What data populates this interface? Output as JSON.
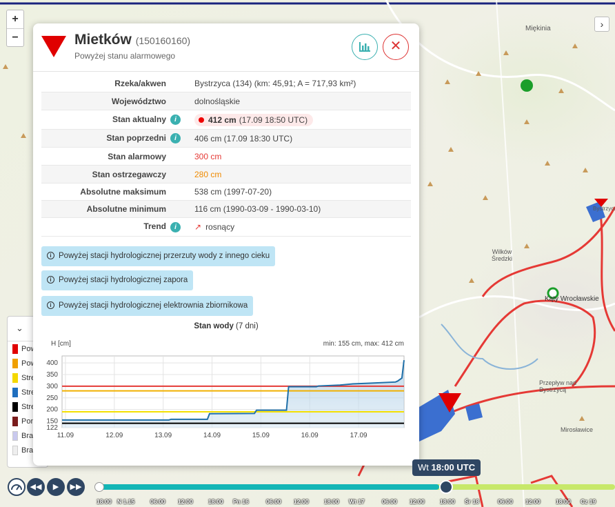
{
  "map": {
    "labels": [
      "Miękinia",
      "Wilków Średzki",
      "Kąty Wrocławskie",
      "Przepływ nad Bystrzycą",
      "Mirosławice",
      "Bystrzyca"
    ],
    "zoom_in": "+",
    "zoom_out": "−",
    "collapse": "›"
  },
  "legend": {
    "toggle": "⌄",
    "items": [
      {
        "label": "Pow",
        "color": "#e00000"
      },
      {
        "label": "Pow",
        "color": "#f0a000"
      },
      {
        "label": "Stre",
        "color": "#f4d800"
      },
      {
        "label": "Stre",
        "color": "#1f6fbf"
      },
      {
        "label": "Stre",
        "color": "#000000"
      },
      {
        "label": "Poni",
        "color": "#7a1c1c"
      },
      {
        "label": "Bra",
        "color": "#c9c9ee"
      },
      {
        "label": "Bra",
        "color": "#eeeeee"
      }
    ]
  },
  "station": {
    "name": "Mietków",
    "code": "(150160160)",
    "status": "Powyżej stanu alarmowego",
    "close": "✕"
  },
  "table": [
    {
      "key": "Rzeka/akwen",
      "value": "Bystrzyca (134) (km: 45,91; A = 717,93 km²)",
      "info": false,
      "color": "#444"
    },
    {
      "key": "Województwo",
      "value": "dolnośląskie",
      "info": false,
      "color": "#444"
    },
    {
      "key": "Stan aktualny",
      "value_bold": "412 cm",
      "value": "(17.09 18:50 UTC)",
      "info": true,
      "color": "#444"
    },
    {
      "key": "Stan poprzedni",
      "value": "406 cm (17.09 18:30 UTC)",
      "info": true,
      "color": "#444"
    },
    {
      "key": "Stan alarmowy",
      "value": "300 cm",
      "info": false,
      "color": "#e53935"
    },
    {
      "key": "Stan ostrzegawczy",
      "value": "280 cm",
      "info": false,
      "color": "#ef8a00"
    },
    {
      "key": "Absolutne maksimum",
      "value": "538 cm (1997-07-20)",
      "info": false,
      "color": "#444"
    },
    {
      "key": "Absolutne minimum",
      "value": "116 cm (1990-03-09 - 1990-03-10)",
      "info": false,
      "color": "#444"
    },
    {
      "key": "Trend",
      "value": "rosnący",
      "trend_icon": "↗",
      "info": true,
      "color": "#444"
    }
  ],
  "notices": [
    "Powyżej stacji hydrologicznej przerzuty wody z innego cieku",
    "Powyżej stacji hydrologicznej zapora",
    "Powyżej stacji hydrologicznej elektrownia zbiornikowa"
  ],
  "chart_header": {
    "title_bold": "Stan wody",
    "title_rest": "(7 dni)",
    "y_unit": "H [cm]",
    "minmax": "min: 155 cm, max: 412 cm"
  },
  "chart_data": {
    "type": "line",
    "ylabel": "H [cm]",
    "ylim": [
      122,
      430
    ],
    "yticks": [
      122,
      150,
      200,
      250,
      300,
      350,
      400
    ],
    "xticks": [
      "11.09",
      "12.09",
      "13.09",
      "14.09",
      "15.09",
      "16.09",
      "17.09"
    ],
    "x_range": [
      "11.09 00:00",
      "17.09 18:50"
    ],
    "thresholds": [
      {
        "name": "Stan alarmowy",
        "value": 300,
        "color": "#e53935"
      },
      {
        "name": "Stan ostrzegawczy",
        "value": 280,
        "color": "#f0b000"
      },
      {
        "value": 190,
        "color": "#f4e000"
      },
      {
        "value": 141,
        "color": "#000000"
      }
    ],
    "series": [
      {
        "color": "#1f6fa8",
        "points": [
          [
            0.0,
            155
          ],
          [
            2.5,
            155
          ],
          [
            2.55,
            158
          ],
          [
            3.4,
            158
          ],
          [
            3.45,
            182
          ],
          [
            4.5,
            183
          ],
          [
            4.55,
            197
          ],
          [
            5.25,
            197
          ],
          [
            5.3,
            298
          ],
          [
            5.5,
            298
          ],
          [
            5.95,
            298
          ],
          [
            6.0,
            301
          ],
          [
            6.5,
            305
          ],
          [
            6.8,
            310
          ],
          [
            7.2,
            313
          ],
          [
            7.8,
            318
          ],
          [
            7.85,
            322
          ],
          [
            7.95,
            335
          ],
          [
            8.0,
            412
          ]
        ]
      }
    ]
  },
  "timeline": {
    "tooltip_day": "Wt",
    "tooltip_time": "18:00 UTC",
    "ticks": [
      {
        "label": "18:00",
        "pos": 0
      },
      {
        "label": "N 1.15",
        "pos": 30
      },
      {
        "label": "06:00",
        "pos": 78
      },
      {
        "label": "12:00",
        "pos": 118
      },
      {
        "label": "18:00",
        "pos": 162
      },
      {
        "label": "Pn 16",
        "pos": 198
      },
      {
        "label": "06:00",
        "pos": 246
      },
      {
        "label": "12:00",
        "pos": 286
      },
      {
        "label": "18:00",
        "pos": 330
      },
      {
        "label": "Wt 17",
        "pos": 366
      },
      {
        "label": "06:00",
        "pos": 414
      },
      {
        "label": "12:00",
        "pos": 454
      },
      {
        "label": "18:00",
        "pos": 498
      },
      {
        "label": "Śr 18",
        "pos": 534
      },
      {
        "label": "06:00",
        "pos": 582
      },
      {
        "label": "12:00",
        "pos": 622
      },
      {
        "label": "18:00",
        "pos": 666
      },
      {
        "label": "Cz 19",
        "pos": 702
      }
    ],
    "progress": 0.66
  }
}
